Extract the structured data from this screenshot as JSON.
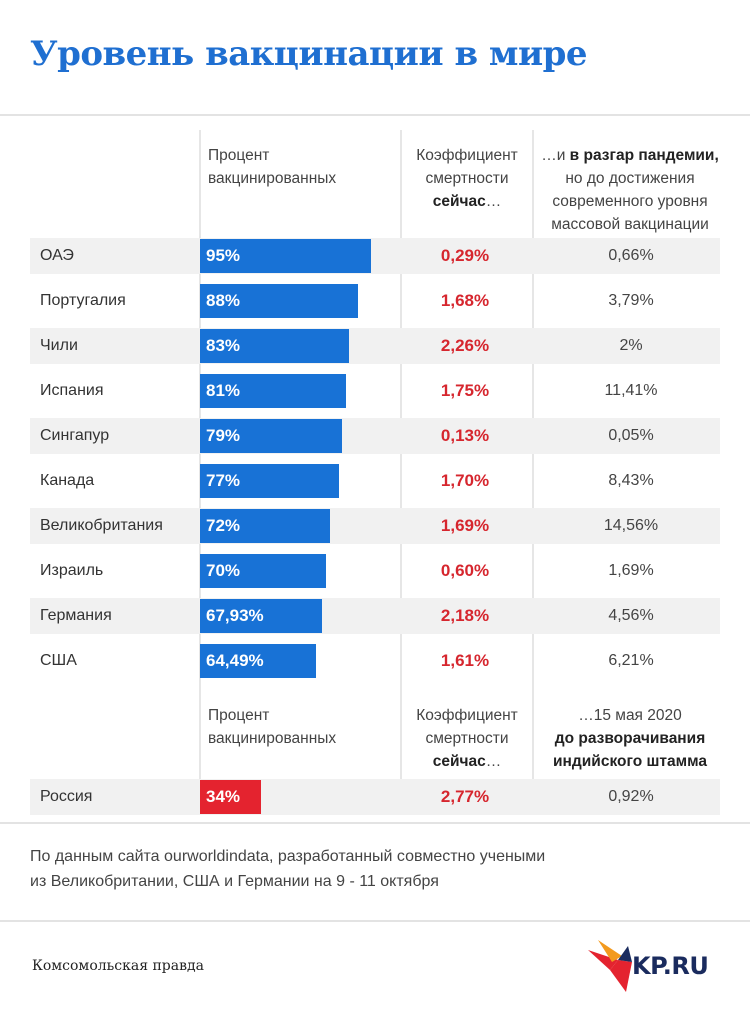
{
  "title": "Уровень вакцинации в мире",
  "headers": {
    "col1": [
      "Процент",
      "вакцинированных"
    ],
    "col2": [
      "Коэффициент",
      "смертности",
      "сейчас",
      "…"
    ],
    "col3_prefix": "…и ",
    "col3_bold": "в разгар пандемии,",
    "col3": [
      "но до достижения",
      "современного уровня",
      "массовой вакцинации"
    ]
  },
  "headers2": {
    "col1": [
      "Процент",
      "вакцинированных"
    ],
    "col2": [
      "Коэффициент",
      "смертности",
      "сейчас",
      "…"
    ],
    "col3": [
      "…15 мая 2020"
    ],
    "col3_bold": [
      "до разворачивания",
      "индийского штамма"
    ]
  },
  "chart_data": {
    "type": "bar",
    "orientation": "horizontal",
    "categories": [
      "ОАЭ",
      "Португалия",
      "Чили",
      "Испания",
      "Сингапур",
      "Канада",
      "Великобритания",
      "Израиль",
      "Германия",
      "США",
      "Россия"
    ],
    "series": [
      {
        "name": "Процент вакцинированных",
        "values": [
          95,
          88,
          83,
          81,
          79,
          77,
          72,
          70,
          67.93,
          64.49,
          34
        ],
        "labels": [
          "95%",
          "88%",
          "83%",
          "81%",
          "79%",
          "77%",
          "72%",
          "70%",
          "67,93%",
          "64,49%",
          "34%"
        ]
      },
      {
        "name": "Коэффициент смертности сейчас",
        "labels": [
          "0,29%",
          "1,68%",
          "2,26%",
          "1,75%",
          "0,13%",
          "1,70%",
          "1,69%",
          "0,60%",
          "2,18%",
          "1,61%",
          "2,77%"
        ]
      },
      {
        "labels": [
          "0,66%",
          "3,79%",
          "2%",
          "11,41%",
          "0,05%",
          "8,43%",
          "14,56%",
          "1,69%",
          "4,56%",
          "6,21%",
          "0,92%"
        ]
      }
    ],
    "bar_color": "#1872d6",
    "highlight_color": "#e4232f",
    "highlight_category": "Россия"
  },
  "footnote": [
    "По данным сайта ourworldindata, разработанный совместно учеными",
    "из Великобритании, США и Германии на 9 - 11 октября"
  ],
  "brand": "Комсомольская правда",
  "logo_text": "KP.RU",
  "colors": {
    "accent": "#1f6fd1",
    "mortality": "#d6262e"
  }
}
